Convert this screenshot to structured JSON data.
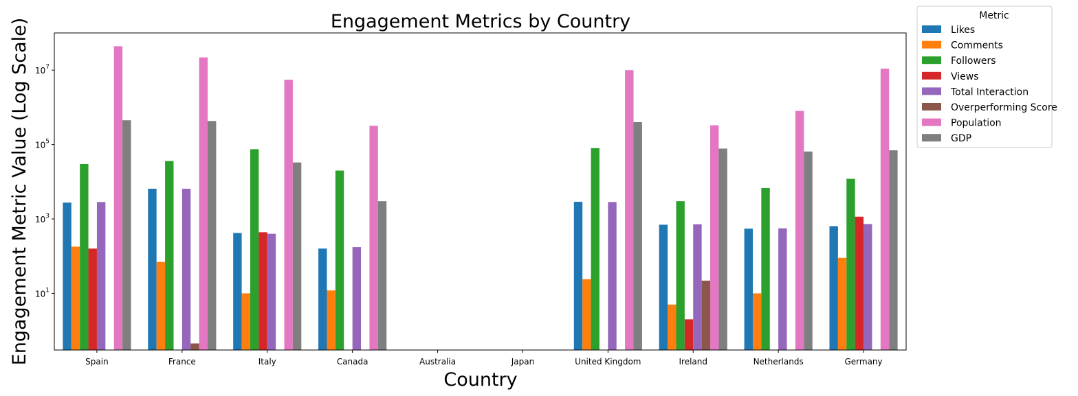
{
  "chart_data": {
    "type": "bar",
    "title": "Engagement Metrics by Country",
    "xlabel": "Country",
    "ylabel": "Engagement Metric Value (Log Scale)",
    "yscale": "log",
    "ylim": [
      0.3,
      100000000
    ],
    "yticks": [
      {
        "value": 10,
        "mantissa": "10",
        "exp": "1"
      },
      {
        "value": 1000,
        "mantissa": "10",
        "exp": "3"
      },
      {
        "value": 100000,
        "mantissa": "10",
        "exp": "5"
      },
      {
        "value": 10000000,
        "mantissa": "10",
        "exp": "7"
      }
    ],
    "grid": false,
    "legend": {
      "title": "Metric",
      "position": "outside-top-right"
    },
    "categories": [
      "Spain",
      "France",
      "Italy",
      "Canada",
      "Australia",
      "Japan",
      "United Kingdom",
      "Ireland",
      "Netherlands",
      "Germany"
    ],
    "series": [
      {
        "name": "Likes",
        "color": "#1f77b4",
        "values": [
          2750,
          6500,
          420,
          160,
          null,
          null,
          2900,
          700,
          550,
          640
        ]
      },
      {
        "name": "Comments",
        "color": "#ff7f0e",
        "values": [
          180,
          70,
          10,
          12,
          null,
          null,
          24,
          5,
          10,
          90
        ]
      },
      {
        "name": "Followers",
        "color": "#2ca02c",
        "values": [
          30000,
          36000,
          75000,
          20000,
          null,
          null,
          80000,
          3000,
          6800,
          12000
        ]
      },
      {
        "name": "Views",
        "color": "#d62728",
        "values": [
          160,
          null,
          440,
          null,
          null,
          null,
          null,
          2,
          null,
          1150
        ]
      },
      {
        "name": "Total Interaction",
        "color": "#9467bd",
        "values": [
          2850,
          6500,
          400,
          175,
          null,
          null,
          2850,
          720,
          560,
          730
        ]
      },
      {
        "name": "Overperforming Score",
        "color": "#8c564b",
        "values": [
          null,
          0.45,
          null,
          null,
          null,
          null,
          null,
          22,
          null,
          null
        ]
      },
      {
        "name": "Population",
        "color": "#e377c2",
        "values": [
          44000000,
          22000000,
          5500000,
          320000,
          null,
          null,
          10000000,
          330000,
          800000,
          11000000
        ]
      },
      {
        "name": "GDP",
        "color": "#7f7f7f",
        "values": [
          450000,
          430000,
          33000,
          3000,
          null,
          null,
          400000,
          78000,
          65000,
          70000
        ]
      }
    ]
  }
}
